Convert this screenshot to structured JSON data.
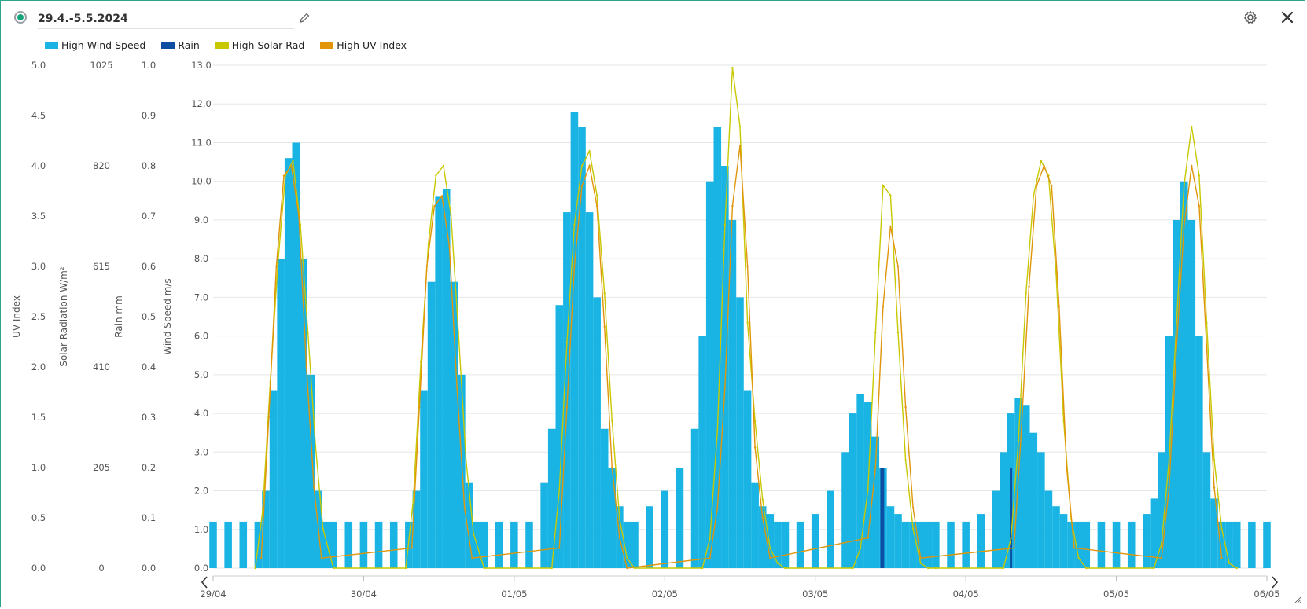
{
  "header": {
    "date_range": "29.4.-5.5.2024",
    "edit_icon": "pencil-icon",
    "settings_icon": "gear-icon",
    "close_icon": "close-icon"
  },
  "legend": [
    {
      "label": "High Wind Speed",
      "color": "#19b4e3"
    },
    {
      "label": "Rain",
      "color": "#0b4ea2"
    },
    {
      "label": "High Solar Rad",
      "color": "#c8c800"
    },
    {
      "label": "High UV Index",
      "color": "#e0950a"
    }
  ],
  "chart_data": {
    "type": "bar",
    "grid": true,
    "legend_position": "top-left",
    "x_range": [
      "29/04",
      "06/05"
    ],
    "x_ticks": [
      "29/04",
      "30/04",
      "01/05",
      "02/05",
      "03/05",
      "04/05",
      "05/05",
      "06/05"
    ],
    "axes": [
      {
        "id": "uv",
        "label": "UV Index",
        "range": [
          0,
          5
        ],
        "ticks": [
          "0.0",
          "0.5",
          "1.0",
          "1.5",
          "2.0",
          "2.5",
          "3.0",
          "3.5",
          "4.0",
          "4.5",
          "5.0"
        ]
      },
      {
        "id": "solar",
        "label": "Solar Radiation W/m²",
        "range": [
          0,
          1025
        ],
        "ticks": [
          "0",
          "205",
          "410",
          "615",
          "820",
          "1025"
        ]
      },
      {
        "id": "rain",
        "label": "Rain mm",
        "range": [
          0,
          1
        ],
        "ticks": [
          "0.0",
          "0.1",
          "0.2",
          "0.3",
          "0.4",
          "0.5",
          "0.6",
          "0.7",
          "0.8",
          "0.9",
          "1.0"
        ]
      },
      {
        "id": "wind",
        "label": "Wind Speed m/s",
        "range": [
          0,
          13
        ],
        "ticks": [
          "0.0",
          "1.0",
          "2.0",
          "3.0",
          "4.0",
          "5.0",
          "6.0",
          "7.0",
          "8.0",
          "9.0",
          "10.0",
          "11.0",
          "12.0",
          "13.0"
        ]
      }
    ],
    "series": [
      {
        "name": "High Wind Speed",
        "axis": "wind",
        "style": "bars",
        "color": "#19b4e3",
        "x": [
          0.0,
          0.1,
          0.2,
          0.3,
          0.35,
          0.4,
          0.45,
          0.5,
          0.55,
          0.6,
          0.65,
          0.7,
          0.75,
          0.8,
          0.9,
          1.0,
          1.1,
          1.2,
          1.3,
          1.35,
          1.4,
          1.45,
          1.5,
          1.55,
          1.6,
          1.65,
          1.7,
          1.75,
          1.8,
          1.9,
          2.0,
          2.1,
          2.2,
          2.25,
          2.3,
          2.35,
          2.4,
          2.45,
          2.5,
          2.55,
          2.6,
          2.65,
          2.7,
          2.75,
          2.8,
          2.9,
          3.0,
          3.1,
          3.2,
          3.25,
          3.3,
          3.35,
          3.4,
          3.45,
          3.5,
          3.55,
          3.6,
          3.65,
          3.7,
          3.75,
          3.8,
          3.9,
          4.0,
          4.1,
          4.2,
          4.25,
          4.3,
          4.35,
          4.4,
          4.45,
          4.5,
          4.55,
          4.6,
          4.65,
          4.7,
          4.75,
          4.8,
          4.9,
          5.0,
          5.1,
          5.2,
          5.25,
          5.3,
          5.35,
          5.4,
          5.45,
          5.5,
          5.55,
          5.6,
          5.65,
          5.7,
          5.75,
          5.8,
          5.9,
          6.0,
          6.1,
          6.2,
          6.25,
          6.3,
          6.35,
          6.4,
          6.45,
          6.5,
          6.55,
          6.6,
          6.65,
          6.7,
          6.75,
          6.8,
          6.9,
          7.0
        ],
        "values": [
          1.2,
          1.2,
          1.2,
          1.2,
          2.0,
          4.6,
          8.0,
          10.6,
          11.0,
          8.0,
          5.0,
          2.0,
          1.2,
          1.2,
          1.2,
          1.2,
          1.2,
          1.2,
          1.2,
          2.0,
          4.6,
          7.4,
          9.6,
          9.8,
          7.4,
          5.0,
          2.2,
          1.2,
          1.2,
          1.2,
          1.2,
          1.2,
          2.2,
          3.6,
          6.8,
          9.2,
          11.8,
          11.4,
          9.2,
          7.0,
          3.6,
          2.6,
          1.6,
          1.2,
          1.2,
          1.6,
          2.0,
          2.6,
          3.6,
          6.0,
          10.0,
          11.4,
          10.4,
          9.0,
          7.0,
          4.6,
          2.2,
          1.6,
          1.4,
          1.2,
          1.2,
          1.2,
          1.4,
          2.0,
          3.0,
          4.0,
          4.5,
          4.3,
          3.4,
          2.6,
          1.6,
          1.4,
          1.2,
          1.2,
          1.2,
          1.2,
          1.2,
          1.2,
          1.2,
          1.4,
          2.0,
          3.0,
          4.0,
          4.4,
          4.2,
          3.5,
          3.0,
          2.0,
          1.6,
          1.4,
          1.2,
          1.2,
          1.2,
          1.2,
          1.2,
          1.2,
          1.4,
          1.8,
          3.0,
          6.0,
          9.0,
          10.0,
          9.0,
          6.0,
          3.0,
          1.8,
          1.2,
          1.2,
          1.2,
          1.2,
          1.2
        ]
      },
      {
        "name": "Rain",
        "axis": "rain",
        "style": "bars",
        "color": "#0b4ea2",
        "x": [
          4.44,
          4.45,
          5.3
        ],
        "values": [
          0.2,
          0.2,
          0.2
        ]
      },
      {
        "name": "High Solar Rad",
        "axis": "solar",
        "style": "line",
        "color": "#c8c800",
        "x": [
          0.28,
          0.33,
          0.38,
          0.43,
          0.48,
          0.53,
          0.58,
          0.63,
          0.68,
          0.73,
          0.8,
          1.28,
          1.33,
          1.38,
          1.43,
          1.48,
          1.53,
          1.58,
          1.63,
          1.68,
          1.73,
          1.8,
          2.25,
          2.3,
          2.35,
          2.4,
          2.45,
          2.5,
          2.55,
          2.6,
          2.65,
          2.7,
          2.75,
          2.8,
          3.25,
          3.3,
          3.35,
          3.4,
          3.45,
          3.5,
          3.55,
          3.6,
          3.65,
          3.7,
          3.75,
          3.8,
          4.25,
          4.3,
          4.35,
          4.4,
          4.45,
          4.5,
          4.55,
          4.6,
          4.65,
          4.7,
          4.75,
          4.8,
          5.25,
          5.3,
          5.35,
          5.4,
          5.45,
          5.5,
          5.55,
          5.6,
          5.65,
          5.7,
          5.75,
          5.8,
          6.25,
          6.3,
          6.35,
          6.4,
          6.45,
          6.5,
          6.55,
          6.6,
          6.65,
          6.7,
          6.75,
          6.8
        ],
        "values": [
          0,
          120,
          380,
          620,
          800,
          830,
          700,
          480,
          250,
          80,
          0,
          0,
          140,
          420,
          660,
          800,
          820,
          720,
          480,
          220,
          70,
          0,
          0,
          160,
          460,
          700,
          820,
          850,
          760,
          560,
          300,
          100,
          20,
          0,
          0,
          60,
          280,
          700,
          1020,
          900,
          500,
          300,
          140,
          40,
          10,
          0,
          0,
          40,
          160,
          480,
          780,
          760,
          480,
          220,
          80,
          10,
          0,
          0,
          0,
          60,
          260,
          560,
          760,
          830,
          800,
          600,
          300,
          100,
          20,
          0,
          0,
          50,
          220,
          500,
          780,
          900,
          800,
          500,
          220,
          80,
          10,
          0
        ]
      },
      {
        "name": "High UV Index",
        "axis": "uv",
        "style": "line",
        "color": "#e0950a",
        "x": [
          0.32,
          0.37,
          0.42,
          0.47,
          0.52,
          0.57,
          0.62,
          0.67,
          0.72,
          1.32,
          1.37,
          1.42,
          1.47,
          1.52,
          1.57,
          1.62,
          1.67,
          1.72,
          2.3,
          2.35,
          2.4,
          2.45,
          2.5,
          2.55,
          2.6,
          2.65,
          2.7,
          2.75,
          3.3,
          3.35,
          3.4,
          3.45,
          3.5,
          3.55,
          3.6,
          3.65,
          3.7,
          4.35,
          4.4,
          4.45,
          4.5,
          4.55,
          4.6,
          4.65,
          4.7,
          5.32,
          5.37,
          5.42,
          5.47,
          5.52,
          5.57,
          5.62,
          5.67,
          5.72,
          6.3,
          6.35,
          6.4,
          6.45,
          6.5,
          6.55,
          6.6,
          6.65,
          6.7
        ],
        "values": [
          0.1,
          1.5,
          3.0,
          3.9,
          4.0,
          3.5,
          2.0,
          0.8,
          0.1,
          0.2,
          1.6,
          3.0,
          3.6,
          3.7,
          3.2,
          1.8,
          0.6,
          0.1,
          0.2,
          1.6,
          3.0,
          3.8,
          4.0,
          3.6,
          2.4,
          1.0,
          0.3,
          0.0,
          0.1,
          0.6,
          1.8,
          3.6,
          4.2,
          3.0,
          1.2,
          0.5,
          0.1,
          0.3,
          1.0,
          2.6,
          3.4,
          3.0,
          1.6,
          0.6,
          0.1,
          0.2,
          1.4,
          2.8,
          3.8,
          4.0,
          3.8,
          2.6,
          1.0,
          0.2,
          0.1,
          0.8,
          2.2,
          3.4,
          4.0,
          3.6,
          2.2,
          0.8,
          0.1
        ]
      }
    ]
  }
}
